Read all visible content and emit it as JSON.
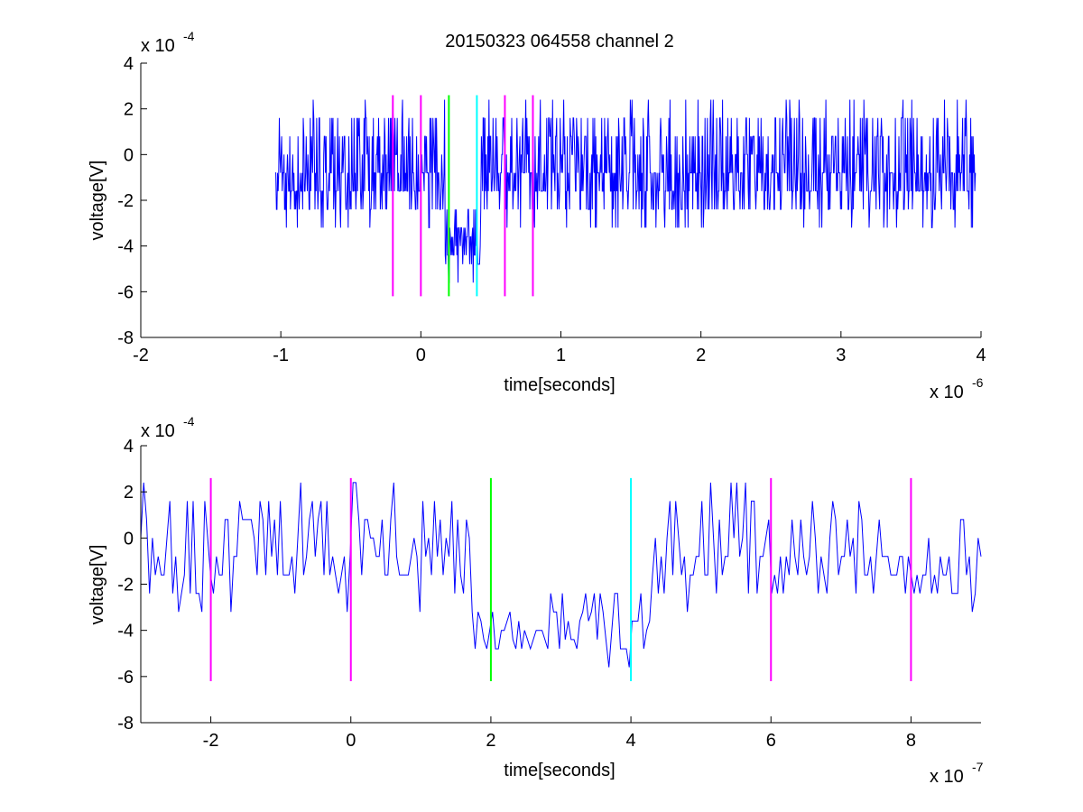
{
  "figure": {
    "title": "20150323 064558 channel 2"
  },
  "chart_data": [
    {
      "type": "line",
      "title": "20150323 064558 channel 2",
      "xlabel": "time[seconds]",
      "ylabel": "voltage[V]",
      "x_exponent_label": "x 10",
      "x_exponent": "-6",
      "y_exponent_label": "x 10",
      "y_exponent": "-4",
      "xlim": [
        -2,
        4
      ],
      "ylim": [
        -8,
        4
      ],
      "xticks": [
        -2,
        -1,
        0,
        1,
        2,
        3,
        4
      ],
      "yticks": [
        -8,
        -6,
        -4,
        -2,
        0,
        2,
        4
      ],
      "grid": false,
      "signal": {
        "color": "#0000ff",
        "x_start": -1.04,
        "x_end": 3.96,
        "points": 1200,
        "baseline": -0.8,
        "baseline_levels": [
          -1.6,
          -0.8,
          0.0,
          -0.8,
          -1.6,
          -2.4,
          0.8,
          1.6
        ],
        "dip_window": [
          0.17,
          0.43
        ],
        "dip_levels": [
          -3.2,
          -4.0,
          -4.8,
          -3.6,
          -2.4,
          -4.4
        ],
        "range": [
          -5.6,
          2.4
        ]
      },
      "markers": [
        {
          "x": -0.2,
          "color": "#ff00ff"
        },
        {
          "x": 0.0,
          "color": "#ff00ff"
        },
        {
          "x": 0.2,
          "color": "#00ff00"
        },
        {
          "x": 0.4,
          "color": "#00ffff"
        },
        {
          "x": 0.6,
          "color": "#ff00ff"
        },
        {
          "x": 0.8,
          "color": "#ff00ff"
        }
      ],
      "marker_span": [
        -6.2,
        2.6
      ]
    },
    {
      "type": "line",
      "title": "",
      "xlabel": "time[seconds]",
      "ylabel": "voltage[V]",
      "x_exponent_label": "x 10",
      "x_exponent": "-7",
      "y_exponent_label": "x 10",
      "y_exponent": "-4",
      "xlim": [
        -3,
        9
      ],
      "ylim": [
        -8,
        4
      ],
      "xticks": [
        -2,
        0,
        2,
        4,
        6,
        8
      ],
      "yticks": [
        -8,
        -6,
        -4,
        -2,
        0,
        2,
        4
      ],
      "grid": false,
      "signal": {
        "color": "#0000ff",
        "x_start": -3,
        "x_end": 9,
        "points": 290,
        "baseline": -0.8,
        "baseline_levels": [
          -1.6,
          -0.8,
          0.0,
          -0.8,
          -1.6,
          -2.4,
          0.8,
          1.6
        ],
        "dip_window": [
          1.7,
          4.3
        ],
        "dip_levels": [
          -3.2,
          -4.0,
          -4.8,
          -3.6,
          -2.4,
          -4.4
        ],
        "range": [
          -5.6,
          2.4
        ]
      },
      "markers": [
        {
          "x": -2,
          "color": "#ff00ff"
        },
        {
          "x": 0,
          "color": "#ff00ff"
        },
        {
          "x": 2,
          "color": "#00ff00"
        },
        {
          "x": 4,
          "color": "#00ffff"
        },
        {
          "x": 6,
          "color": "#ff00ff"
        },
        {
          "x": 8,
          "color": "#ff00ff"
        }
      ],
      "marker_span": [
        -6.2,
        2.6
      ]
    }
  ]
}
